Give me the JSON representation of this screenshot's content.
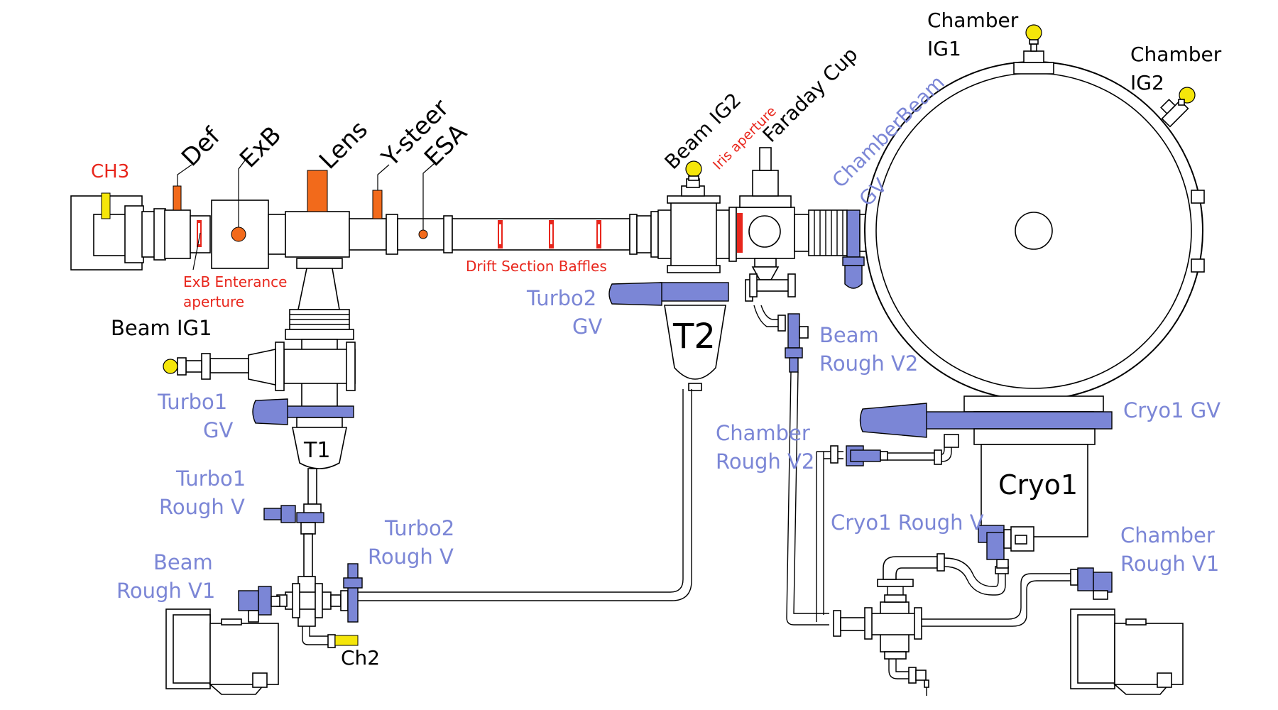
{
  "colors": {
    "component_label": "#000000",
    "valve_label": "#7b86d6",
    "annotation_label": "#e8261c",
    "valve_fill": "#7b86d6",
    "element_fill": "#f26a1b",
    "gauge_fill": "#f5e60a"
  },
  "labels": {
    "ch3": "CH3",
    "def": "Def",
    "exb": "ExB",
    "lens": "Lens",
    "ysteer": "Y-steer",
    "esa": "ESA",
    "beam_ig2": "Beam IG2",
    "iris_aperture": "Iris aperture",
    "faraday_cup": "Faraday Cup",
    "chamber_beam_gv_1": "ChamberBeam",
    "chamber_beam_gv_2": "GV",
    "chamber_ig1_1": "Chamber",
    "chamber_ig1_2": "IG1",
    "chamber_ig2_1": "Chamber",
    "chamber_ig2_2": "IG2",
    "exb_entrance_1": "ExB Enterance",
    "exb_entrance_2": "aperture",
    "drift_baffles": "Drift Section Baffles",
    "turbo2_gv_1": "Turbo2",
    "turbo2_gv_2": "GV",
    "t2": "T2",
    "beam_rough_v2_1": "Beam",
    "beam_rough_v2_2": "Rough V2",
    "beam_ig1": "Beam IG1",
    "turbo1_gv_1": "Turbo1",
    "turbo1_gv_2": "GV",
    "t1": "T1",
    "turbo1_rough_v_1": "Turbo1",
    "turbo1_rough_v_2": "Rough V",
    "turbo2_rough_v_1": "Turbo2",
    "turbo2_rough_v_2": "Rough V",
    "beam_rough_v1_1": "Beam",
    "beam_rough_v1_2": "Rough V1",
    "ch2": "Ch2",
    "chamber_rough_v2_1": "Chamber",
    "chamber_rough_v2_2": "Rough V2",
    "cryo1_gv": "Cryo1 GV",
    "cryo1": "Cryo1",
    "cryo1_rough_v": "Cryo1 Rough V",
    "chamber_rough_v1_1": "Chamber",
    "chamber_rough_v1_2": "Rough V1"
  },
  "icons": [
    "ion-gauge-icon",
    "gate-valve-icon",
    "rough-valve-icon",
    "turbo-pump-icon",
    "cryo-pump-icon",
    "rough-pump-icon",
    "vacuum-chamber-icon"
  ]
}
